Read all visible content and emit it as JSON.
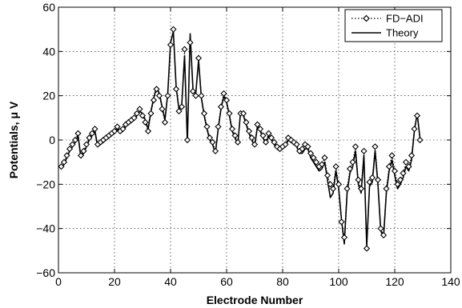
{
  "chart_data": {
    "type": "line",
    "xlabel": "Electrode Number",
    "ylabel": "Potentials, μ V",
    "xlim": [
      0,
      140
    ],
    "ylim": [
      -60,
      60
    ],
    "xticks": [
      0,
      20,
      40,
      60,
      80,
      100,
      120,
      140
    ],
    "yticks": [
      -60,
      -40,
      -20,
      0,
      20,
      40,
      60
    ],
    "grid": true,
    "legend_position": "top-right",
    "series": [
      {
        "name": "FD−ADI",
        "style": "dotted line with open diamond markers",
        "color": "#000000",
        "x": [
          1,
          2,
          3,
          4,
          5,
          6,
          7,
          8,
          9,
          10,
          11,
          12,
          13,
          14,
          15,
          16,
          17,
          18,
          19,
          20,
          21,
          22,
          23,
          24,
          25,
          26,
          27,
          28,
          29,
          30,
          31,
          32,
          33,
          34,
          35,
          36,
          37,
          38,
          39,
          40,
          41,
          42,
          43,
          44,
          45,
          46,
          47,
          48,
          49,
          50,
          51,
          52,
          53,
          54,
          55,
          56,
          57,
          58,
          59,
          60,
          61,
          62,
          63,
          64,
          65,
          66,
          67,
          68,
          69,
          70,
          71,
          72,
          73,
          74,
          75,
          76,
          77,
          78,
          79,
          80,
          81,
          82,
          83,
          84,
          85,
          86,
          87,
          88,
          89,
          90,
          91,
          92,
          93,
          94,
          95,
          96,
          97,
          98,
          99,
          100,
          101,
          102,
          103,
          104,
          105,
          106,
          107,
          108,
          109,
          110,
          111,
          112,
          113,
          114,
          115,
          116,
          117,
          118,
          119,
          120,
          121,
          122,
          123,
          124,
          125,
          126,
          127,
          128,
          129
        ],
        "y": [
          -12,
          -10,
          -7,
          -4,
          -2,
          0,
          3,
          -7,
          -5,
          -2,
          1,
          3,
          5,
          -2,
          -1,
          0,
          1,
          2,
          3,
          4,
          6,
          4,
          5,
          7,
          8,
          9,
          10,
          12,
          14,
          11,
          8,
          4,
          12,
          18,
          23,
          20,
          14,
          8,
          20,
          43,
          50,
          23,
          13,
          15,
          41,
          0,
          44,
          22,
          20,
          37,
          20,
          12,
          6,
          1,
          -1,
          -5,
          6,
          15,
          21,
          18,
          12,
          5,
          2,
          -1,
          12,
          12,
          8,
          4,
          1,
          -2,
          7,
          5,
          2,
          -1,
          3,
          1,
          -1,
          -3,
          -4,
          -3,
          -2,
          1,
          0,
          -1,
          -2,
          -5,
          -4,
          -2,
          -3,
          -6,
          -8,
          -10,
          -12,
          -11,
          -8,
          -16,
          -20,
          -22,
          -12,
          -20,
          -37,
          -44,
          -22,
          -13,
          -10,
          -3,
          -18,
          -22,
          -5,
          -49,
          -19,
          -17,
          -3,
          -18,
          -40,
          -43,
          -22,
          -12,
          -7,
          -14,
          -20,
          -18,
          -15,
          -10,
          -12,
          -7,
          5,
          11,
          0
        ]
      },
      {
        "name": "Theory",
        "style": "solid line",
        "color": "#000000",
        "x": [
          1,
          2,
          3,
          4,
          5,
          6,
          7,
          8,
          9,
          10,
          11,
          12,
          13,
          14,
          15,
          16,
          17,
          18,
          19,
          20,
          21,
          22,
          23,
          24,
          25,
          26,
          27,
          28,
          29,
          30,
          31,
          32,
          33,
          34,
          35,
          36,
          37,
          38,
          39,
          40,
          41,
          42,
          43,
          44,
          45,
          46,
          47,
          48,
          49,
          50,
          51,
          52,
          53,
          54,
          55,
          56,
          57,
          58,
          59,
          60,
          61,
          62,
          63,
          64,
          65,
          66,
          67,
          68,
          69,
          70,
          71,
          72,
          73,
          74,
          75,
          76,
          77,
          78,
          79,
          80,
          81,
          82,
          83,
          84,
          85,
          86,
          87,
          88,
          89,
          90,
          91,
          92,
          93,
          94,
          95,
          96,
          97,
          98,
          99,
          100,
          101,
          102,
          103,
          104,
          105,
          106,
          107,
          108,
          109,
          110,
          111,
          112,
          113,
          114,
          115,
          116,
          117,
          118,
          119,
          120,
          121,
          122,
          123,
          124,
          125,
          126,
          127,
          128,
          129
        ],
        "y": [
          -13,
          -11,
          -8,
          -5,
          -3,
          -1,
          2,
          -8,
          -6,
          -3,
          0,
          2,
          4,
          -3,
          -2,
          -1,
          0,
          1,
          2,
          3,
          5,
          3,
          4,
          6,
          7,
          8,
          9,
          11,
          13,
          12,
          9,
          5,
          13,
          19,
          24,
          21,
          15,
          9,
          21,
          44,
          49,
          24,
          14,
          16,
          38,
          -1,
          48,
          23,
          21,
          36,
          19,
          11,
          5,
          0,
          -2,
          -6,
          5,
          14,
          20,
          17,
          11,
          4,
          1,
          -2,
          13,
          11,
          7,
          3,
          0,
          -3,
          6,
          4,
          1,
          -2,
          2,
          0,
          -2,
          -4,
          -5,
          -4,
          -3,
          0,
          -1,
          -2,
          -3,
          -6,
          -6,
          -4,
          -4,
          -8,
          -10,
          -12,
          -14,
          -13,
          -10,
          -18,
          -26,
          -24,
          -14,
          -22,
          -36,
          -47,
          -24,
          -15,
          -12,
          -5,
          -20,
          -24,
          -7,
          -48,
          -21,
          -19,
          -5,
          -20,
          -41,
          -44,
          -24,
          -14,
          -9,
          -16,
          -22,
          -20,
          -17,
          -12,
          -14,
          -9,
          4,
          12,
          1
        ]
      }
    ]
  }
}
